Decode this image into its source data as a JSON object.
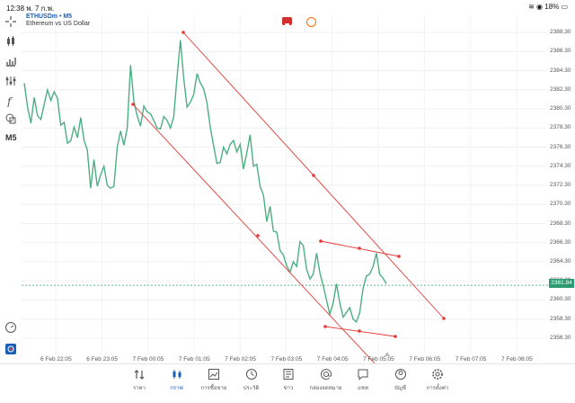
{
  "status": {
    "time": "12:38",
    "date": "พ. 7 ก.พ.",
    "battery": "18%"
  },
  "symbol": {
    "name": "ETHUSDm • M5",
    "description": "Ethereum vs US Dollar"
  },
  "toolbar": {
    "timeframe": "M5"
  },
  "colors": {
    "series": "#4caf84",
    "channel": "#e53935",
    "accent": "#1a5fb4",
    "price_badge": "#2d9a74"
  },
  "current_price": "2361.84",
  "chart_data": {
    "type": "line",
    "ylim": [
      2354.6,
      2390.2
    ],
    "yticks": [
      "2388.30",
      "2386.30",
      "2384.30",
      "2382.30",
      "2380.30",
      "2378.30",
      "2376.30",
      "2374.30",
      "2372.30",
      "2370.30",
      "2368.30",
      "2366.30",
      "2364.30",
      "2362.30",
      "2360.30",
      "2358.30",
      "2356.30"
    ],
    "xticks": [
      "6 Feb 22:05",
      "6 Feb 23:05",
      "7 Feb 00:05",
      "7 Feb 01:05",
      "7 Feb 02:05",
      "7 Feb 03:05",
      "7 Feb 04:05",
      "7 Feb 05:05",
      "7 Feb 06:05",
      "7 Feb 07:05",
      "7 Feb 08:05"
    ],
    "series": [
      {
        "values": [
          2383.0,
          2380.5,
          2378.8,
          2381.5,
          2379.6,
          2379.2,
          2380.8,
          2382.3,
          2381.2,
          2382.1,
          2381.4,
          2378.6,
          2378.9,
          2376.7,
          2377.0,
          2378.4,
          2377.3,
          2379.4,
          2377.0,
          2376.0,
          2372.0,
          2375.0,
          2372.2,
          2373.4,
          2374.3,
          2372.3,
          2372.0,
          2372.2,
          2376.3,
          2378.0,
          2376.5,
          2378.3,
          2384.9,
          2381.1,
          2379.6,
          2378.5,
          2380.6,
          2380.0,
          2379.8,
          2379.1,
          2378.3,
          2378.2,
          2379.5,
          2379.1,
          2378.3,
          2379.5,
          2383.7,
          2387.5,
          2383.5,
          2380.5,
          2381.0,
          2381.8,
          2384.0,
          2383.0,
          2382.4,
          2381.0,
          2378.4,
          2376.5,
          2374.6,
          2374.7,
          2376.3,
          2375.6,
          2376.6,
          2377.0,
          2375.8,
          2376.6,
          2374.0,
          2375.7,
          2377.6,
          2374.3,
          2374.5,
          2372.2,
          2371.3,
          2368.5,
          2370.1,
          2367.5,
          2367.4,
          2365.5,
          2365.0,
          2363.9,
          2363.2,
          2364.3,
          2363.8,
          2366.4,
          2366.0,
          2363.5,
          2362.5,
          2363.0,
          2365.2,
          2363.1,
          2361.8,
          2360.3,
          2358.8,
          2360.0,
          2362.0,
          2360.0,
          2358.5,
          2359.0,
          2359.5,
          2358.3,
          2358.0,
          2359.0,
          2361.5,
          2362.8,
          2363.0,
          2363.8,
          2365.2,
          2363.0,
          2362.6,
          2362.0
        ]
      }
    ],
    "grid": true,
    "legend": "none"
  },
  "tabs": [
    {
      "label": "ราคา",
      "icon": "quotes-icon"
    },
    {
      "label": "กราฟ",
      "icon": "chart-icon"
    },
    {
      "label": "การซื้อขาย",
      "icon": "trade-icon"
    },
    {
      "label": "ประวัติ",
      "icon": "history-icon"
    },
    {
      "label": "ข่าว",
      "icon": "news-icon"
    },
    {
      "label": "กล่องจดหมาย",
      "icon": "mailbox-icon"
    },
    {
      "label": "แชท",
      "icon": "chat-icon"
    },
    {
      "label": "บัญชี",
      "icon": "account-icon"
    },
    {
      "label": "การตั้งค่า",
      "icon": "settings-icon"
    }
  ]
}
